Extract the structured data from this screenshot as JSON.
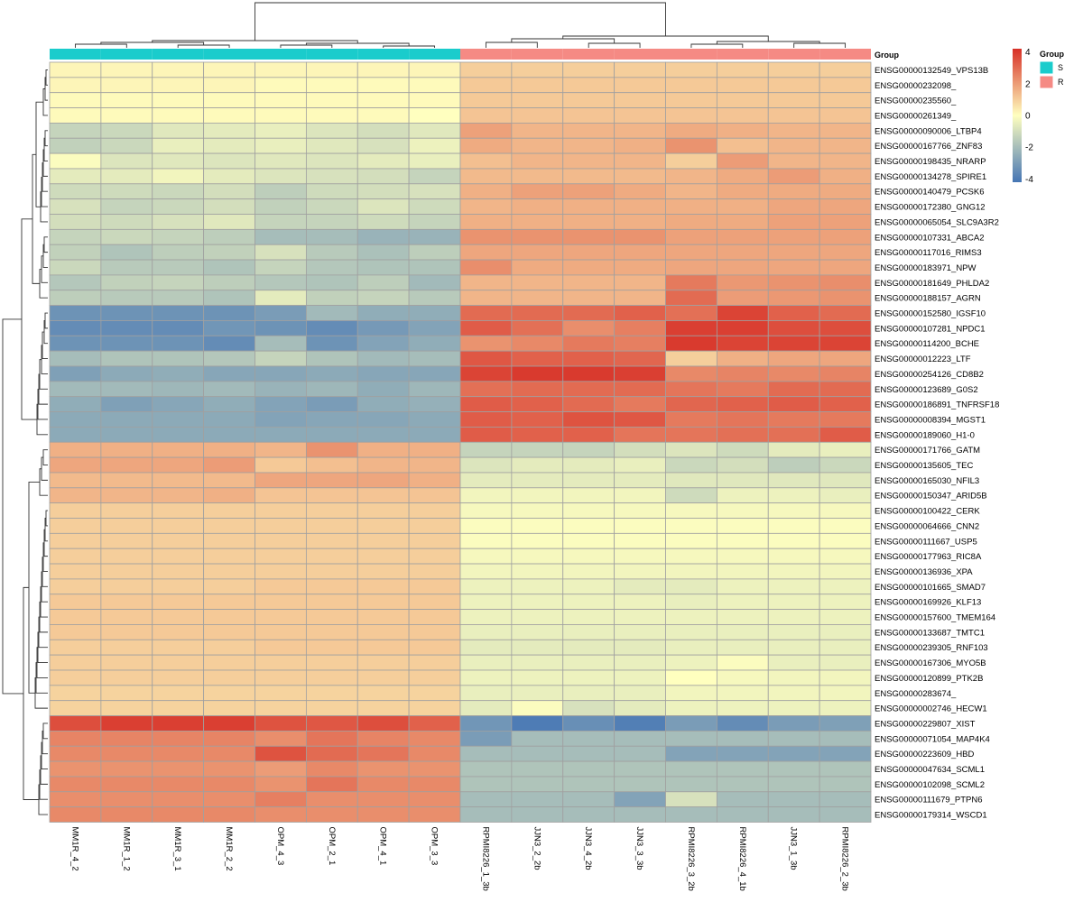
{
  "chart_data": {
    "type": "heatmap",
    "annotation": {
      "title": "Group",
      "legend_title": "Group",
      "levels": [
        {
          "name": "S",
          "color": "#1ACCCC"
        },
        {
          "name": "R",
          "color": "#F58A84"
        }
      ],
      "column_groups": [
        "S",
        "S",
        "S",
        "S",
        "S",
        "S",
        "S",
        "S",
        "R",
        "R",
        "R",
        "R",
        "R",
        "R",
        "R",
        "R"
      ]
    },
    "columns": [
      "MM1R_4_2",
      "MM1R_1_2",
      "MM1R_3_1",
      "MM1R_2_2",
      "OPM_4_3",
      "OPM_2_1",
      "OPM_4_1",
      "OPM_3_3",
      "RPMI8226_1_3b",
      "JJN3_2_2b",
      "JJN3_4_2b",
      "JJN3_3_3b",
      "RPMI8226_3_2b",
      "RPMI8226_4_1b",
      "JJN3_1_3b",
      "RPMI8226_2_3b"
    ],
    "rows": [
      "ENSG00000132549_VPS13B",
      "ENSG00000232098_",
      "ENSG00000235560_",
      "ENSG00000261349_",
      "ENSG00000090006_LTBP4",
      "ENSG00000167766_ZNF83",
      "ENSG00000198435_NRARP",
      "ENSG00000134278_SPIRE1",
      "ENSG00000140479_PCSK6",
      "ENSG00000172380_GNG12",
      "ENSG00000065054_SLC9A3R2",
      "ENSG00000107331_ABCA2",
      "ENSG00000117016_RIMS3",
      "ENSG00000183971_NPW",
      "ENSG00000181649_PHLDA2",
      "ENSG00000188157_AGRN",
      "ENSG00000152580_IGSF10",
      "ENSG00000107281_NPDC1",
      "ENSG00000114200_BCHE",
      "ENSG00000012223_LTF",
      "ENSG00000254126_CD8B2",
      "ENSG00000123689_G0S2",
      "ENSG00000186891_TNFRSF18",
      "ENSG00000008394_MGST1",
      "ENSG00000189060_H1-0",
      "ENSG00000171766_GATM",
      "ENSG00000135605_TEC",
      "ENSG00000165030_NFIL3",
      "ENSG00000150347_ARID5B",
      "ENSG00000100422_CERK",
      "ENSG00000064666_CNN2",
      "ENSG00000111667_USP5",
      "ENSG00000177963_RIC8A",
      "ENSG00000136936_XPA",
      "ENSG00000101665_SMAD7",
      "ENSG00000169926_KLF13",
      "ENSG00000157600_TMEM164",
      "ENSG00000133687_TMTC1",
      "ENSG00000239305_RNF103",
      "ENSG00000167306_MYO5B",
      "ENSG00000120899_PTK2B",
      "ENSG00000283674_",
      "ENSG00000002746_HECW1",
      "ENSG00000229807_XIST",
      "ENSG00000071054_MAP4K4",
      "ENSG00000223609_HBD",
      "ENSG00000047634_SCML1",
      "ENSG00000102098_SCML2",
      "ENSG00000111679_PTPN6",
      "ENSG00000179314_WSCD1"
    ],
    "values": [
      [
        0.2,
        0.2,
        0.2,
        0.2,
        0.2,
        0.2,
        0.2,
        0.2,
        1.0,
        1.0,
        1.0,
        1.0,
        1.0,
        1.0,
        1.0,
        1.0
      ],
      [
        0.2,
        0.2,
        0.2,
        0.2,
        0.1,
        0.1,
        0.1,
        0.1,
        1.1,
        1.1,
        1.1,
        1.1,
        1.1,
        1.1,
        1.1,
        1.1
      ],
      [
        0.1,
        0.1,
        0.1,
        0.1,
        0.1,
        0.1,
        0.1,
        0.1,
        1.1,
        1.1,
        1.1,
        1.1,
        1.1,
        1.1,
        1.1,
        1.1
      ],
      [
        0.1,
        0.1,
        0.1,
        0.1,
        0.1,
        0.1,
        0.1,
        0.0,
        1.2,
        1.2,
        1.2,
        1.2,
        1.2,
        1.2,
        1.2,
        1.2
      ],
      [
        -1.3,
        -1.2,
        -0.7,
        -0.6,
        -0.5,
        -0.8,
        -1.0,
        -0.7,
        1.9,
        1.5,
        1.5,
        1.5,
        1.7,
        1.6,
        1.5,
        1.5
      ],
      [
        -1.4,
        -1.2,
        -0.5,
        -0.6,
        -0.5,
        -0.7,
        -0.9,
        -0.4,
        1.7,
        1.5,
        1.5,
        1.6,
        2.2,
        1.3,
        1.5,
        1.5
      ],
      [
        -0.1,
        -0.8,
        -0.7,
        -0.8,
        -0.7,
        -0.8,
        -0.6,
        -0.5,
        1.3,
        1.5,
        1.5,
        1.5,
        1.0,
        2.0,
        1.5,
        1.5
      ],
      [
        -0.6,
        -0.6,
        -0.3,
        -0.6,
        -0.8,
        -0.9,
        -1.0,
        -1.3,
        1.4,
        1.4,
        1.4,
        1.4,
        1.5,
        1.7,
        2.0,
        1.6
      ],
      [
        -1.1,
        -1.1,
        -1.2,
        -1.0,
        -1.5,
        -1.1,
        -1.0,
        -0.9,
        1.6,
        1.9,
        1.9,
        1.7,
        1.5,
        1.7,
        1.7,
        1.7
      ],
      [
        -0.9,
        -1.3,
        -1.2,
        -1.0,
        -1.4,
        -1.2,
        -0.8,
        -1.1,
        1.5,
        1.6,
        1.6,
        1.6,
        1.6,
        1.6,
        1.8,
        1.8
      ],
      [
        -1.0,
        -1.1,
        -0.9,
        -0.7,
        -1.3,
        -1.3,
        -1.1,
        -1.3,
        1.6,
        1.6,
        1.6,
        1.6,
        1.7,
        1.7,
        1.9,
        1.9
      ],
      [
        -1.3,
        -1.2,
        -1.3,
        -1.5,
        -2.0,
        -2.0,
        -2.3,
        -2.3,
        2.2,
        2.2,
        2.2,
        2.2,
        1.9,
        1.9,
        1.9,
        1.9
      ],
      [
        -1.4,
        -1.8,
        -1.5,
        -1.4,
        -0.9,
        -1.6,
        -1.9,
        -1.5,
        1.8,
        1.8,
        1.8,
        1.8,
        1.8,
        1.8,
        1.8,
        1.8
      ],
      [
        -1.2,
        -1.6,
        -1.6,
        -1.8,
        -1.3,
        -1.7,
        -1.8,
        -1.8,
        2.3,
        1.7,
        1.7,
        1.7,
        1.8,
        1.8,
        1.8,
        1.8
      ],
      [
        -1.7,
        -1.4,
        -1.3,
        -1.5,
        -1.7,
        -1.8,
        -1.5,
        -2.1,
        1.5,
        1.5,
        1.5,
        1.5,
        2.7,
        2.1,
        2.2,
        2.3
      ],
      [
        -1.5,
        -1.6,
        -1.6,
        -1.8,
        -0.6,
        -1.4,
        -1.3,
        -1.6,
        1.5,
        1.5,
        1.5,
        1.5,
        3.0,
        2.0,
        2.1,
        2.2
      ],
      [
        -3.3,
        -3.3,
        -3.3,
        -3.3,
        -3.0,
        -2.1,
        -2.5,
        -2.5,
        3.0,
        3.0,
        3.0,
        3.2,
        2.9,
        3.8,
        3.2,
        3.0
      ],
      [
        -3.5,
        -3.5,
        -3.5,
        -3.2,
        -3.3,
        -3.5,
        -3.1,
        -2.8,
        3.3,
        2.9,
        2.3,
        2.6,
        3.9,
        3.9,
        3.6,
        3.6
      ],
      [
        -3.3,
        -3.3,
        -3.3,
        -3.5,
        -2.0,
        -3.3,
        -2.8,
        -2.5,
        2.2,
        2.4,
        2.7,
        2.6,
        4.0,
        3.8,
        3.8,
        3.8
      ],
      [
        -2.0,
        -1.8,
        -1.8,
        -1.7,
        -1.3,
        -1.8,
        -2.1,
        -2.0,
        3.4,
        3.2,
        3.2,
        3.1,
        1.0,
        1.6,
        1.8,
        1.8
      ],
      [
        -2.9,
        -2.6,
        -2.5,
        -2.7,
        -2.7,
        -2.6,
        -2.7,
        -2.7,
        3.8,
        4.0,
        4.0,
        3.9,
        2.4,
        2.5,
        2.4,
        2.5
      ],
      [
        -2.1,
        -2.1,
        -2.2,
        -2.1,
        -2.3,
        -2.2,
        -2.5,
        -2.2,
        2.9,
        3.0,
        3.0,
        3.0,
        2.8,
        2.7,
        3.0,
        3.0
      ],
      [
        -2.5,
        -2.9,
        -2.7,
        -2.5,
        -2.8,
        -3.0,
        -2.5,
        -2.4,
        3.3,
        3.2,
        3.0,
        2.7,
        3.1,
        3.2,
        3.3,
        3.2
      ],
      [
        -2.6,
        -2.6,
        -2.6,
        -2.6,
        -2.8,
        -2.7,
        -2.7,
        -2.6,
        3.3,
        3.2,
        3.5,
        3.4,
        2.7,
        2.8,
        2.7,
        2.7
      ],
      [
        -2.6,
        -2.6,
        -2.6,
        -2.6,
        -2.6,
        -2.6,
        -2.6,
        -2.6,
        3.3,
        3.2,
        3.2,
        2.8,
        2.8,
        2.9,
        2.9,
        3.3
      ],
      [
        1.6,
        1.6,
        1.6,
        1.6,
        1.5,
        2.2,
        1.6,
        1.6,
        -1.3,
        -1.3,
        -1.3,
        -1.0,
        -0.8,
        -1.1,
        -0.6,
        -0.5
      ],
      [
        1.8,
        1.8,
        1.8,
        2.0,
        1.1,
        1.3,
        1.5,
        1.5,
        -0.8,
        -0.6,
        -0.6,
        -0.5,
        -1.2,
        -1.0,
        -1.5,
        -1.2
      ],
      [
        1.4,
        1.4,
        1.4,
        1.4,
        1.8,
        1.8,
        1.8,
        1.6,
        -0.6,
        -0.6,
        -0.6,
        -0.6,
        -0.7,
        -0.7,
        -0.7,
        -0.7
      ],
      [
        1.5,
        1.5,
        1.5,
        1.6,
        1.2,
        1.2,
        1.2,
        1.2,
        -0.3,
        -0.3,
        -0.3,
        -0.3,
        -1.1,
        -0.4,
        -0.4,
        -0.5
      ],
      [
        1.0,
        1.0,
        1.0,
        1.0,
        1.0,
        1.0,
        1.0,
        1.0,
        -0.2,
        -0.2,
        -0.2,
        -0.2,
        -0.2,
        -0.2,
        -0.2,
        -0.2
      ],
      [
        1.0,
        1.0,
        1.0,
        1.0,
        1.0,
        1.0,
        1.0,
        1.0,
        -0.1,
        -0.1,
        -0.1,
        -0.1,
        -0.1,
        -0.1,
        -0.1,
        -0.1
      ],
      [
        1.0,
        1.0,
        1.0,
        1.0,
        1.0,
        1.0,
        1.0,
        1.0,
        -0.1,
        -0.1,
        -0.1,
        -0.1,
        -0.1,
        -0.1,
        -0.1,
        -0.1
      ],
      [
        1.0,
        1.0,
        1.0,
        1.0,
        1.0,
        1.0,
        1.0,
        1.0,
        -0.2,
        -0.2,
        -0.2,
        -0.2,
        -0.2,
        -0.2,
        -0.2,
        -0.2
      ],
      [
        1.0,
        1.0,
        1.0,
        1.0,
        1.0,
        1.0,
        1.0,
        1.0,
        -0.3,
        -0.3,
        -0.3,
        -0.3,
        -0.3,
        -0.3,
        -0.3,
        -0.3
      ],
      [
        1.0,
        1.0,
        1.0,
        1.0,
        1.1,
        1.1,
        1.1,
        1.1,
        -0.4,
        -0.4,
        -0.4,
        -0.6,
        -0.6,
        -0.4,
        -0.4,
        -0.4
      ],
      [
        1.1,
        1.1,
        1.1,
        1.1,
        1.1,
        1.1,
        1.1,
        1.1,
        -0.4,
        -0.4,
        -0.4,
        -0.4,
        -0.5,
        -0.4,
        -0.4,
        -0.4
      ],
      [
        1.1,
        1.1,
        1.1,
        1.1,
        1.1,
        1.1,
        1.1,
        1.1,
        -0.4,
        -0.4,
        -0.4,
        -0.4,
        -0.4,
        -0.4,
        -0.4,
        -0.4
      ],
      [
        1.1,
        1.1,
        1.1,
        1.1,
        1.1,
        1.1,
        1.1,
        1.1,
        -0.5,
        -0.5,
        -0.5,
        -0.5,
        -0.5,
        -0.5,
        -0.5,
        -0.5
      ],
      [
        1.0,
        1.0,
        1.0,
        1.0,
        1.1,
        1.1,
        1.1,
        1.1,
        -0.6,
        -0.6,
        -0.6,
        -0.6,
        -0.5,
        -0.5,
        -0.5,
        -0.5
      ],
      [
        1.0,
        1.0,
        1.0,
        1.0,
        1.0,
        1.0,
        1.0,
        1.0,
        -0.5,
        -0.5,
        -0.5,
        -0.5,
        -0.4,
        -0.1,
        -0.5,
        -0.5
      ],
      [
        1.0,
        1.0,
        1.0,
        1.0,
        1.0,
        1.0,
        1.0,
        1.0,
        -0.4,
        -0.4,
        -0.4,
        -0.4,
        0.0,
        -0.2,
        -0.3,
        -0.3
      ],
      [
        0.9,
        0.9,
        0.9,
        0.9,
        0.9,
        0.9,
        0.9,
        0.9,
        -0.5,
        -0.5,
        -0.5,
        -0.5,
        -0.3,
        -0.3,
        -0.3,
        -0.3
      ],
      [
        0.9,
        0.9,
        0.9,
        0.9,
        0.9,
        0.9,
        0.9,
        0.9,
        -0.6,
        -0.1,
        -0.9,
        -0.6,
        -0.4,
        -0.4,
        -0.4,
        -0.4
      ],
      [
        3.6,
        3.9,
        3.9,
        3.9,
        3.5,
        3.4,
        3.6,
        3.2,
        -3.2,
        -4.0,
        -3.4,
        -3.9,
        -3.0,
        -3.5,
        -3.0,
        -2.9
      ],
      [
        2.5,
        2.5,
        2.5,
        2.5,
        2.3,
        2.8,
        2.5,
        2.4,
        -3.0,
        -2.0,
        -2.0,
        -2.0,
        -2.0,
        -2.0,
        -2.0,
        -2.0
      ],
      [
        2.4,
        2.4,
        2.4,
        2.4,
        3.5,
        3.0,
        2.8,
        2.4,
        -2.0,
        -2.0,
        -2.0,
        -2.0,
        -2.8,
        -2.8,
        -2.8,
        -2.8
      ],
      [
        2.2,
        2.2,
        2.2,
        2.2,
        2.0,
        2.4,
        2.2,
        2.2,
        -1.8,
        -1.8,
        -1.8,
        -1.8,
        -1.8,
        -1.8,
        -1.8,
        -1.8
      ],
      [
        2.4,
        2.4,
        2.4,
        2.4,
        2.2,
        2.8,
        2.4,
        2.4,
        -1.8,
        -1.8,
        -1.8,
        -1.8,
        -1.8,
        -1.8,
        -1.8,
        -1.8
      ],
      [
        2.3,
        2.3,
        2.3,
        2.3,
        2.6,
        2.3,
        2.3,
        2.3,
        -2.0,
        -2.0,
        -2.0,
        -2.8,
        -0.9,
        -2.0,
        -2.0,
        -2.0
      ],
      [
        2.4,
        2.4,
        2.4,
        2.4,
        2.3,
        2.3,
        2.3,
        2.3,
        -2.0,
        -2.0,
        -2.0,
        -2.0,
        -2.0,
        -2.0,
        -2.0,
        -2.0
      ]
    ],
    "color_scale": {
      "min": -4.2,
      "max": 4.2,
      "low": "#4575B4",
      "mid": "#FFFFBF",
      "high": "#D73027",
      "tick_labels": [
        {
          "value": 4,
          "label": "4"
        },
        {
          "value": 2,
          "label": "2"
        },
        {
          "value": 0,
          "label": "0"
        },
        {
          "value": -2,
          "label": "-2"
        },
        {
          "value": -4,
          "label": "-4"
        }
      ]
    },
    "cell_border_color": "#A0A0A0"
  }
}
